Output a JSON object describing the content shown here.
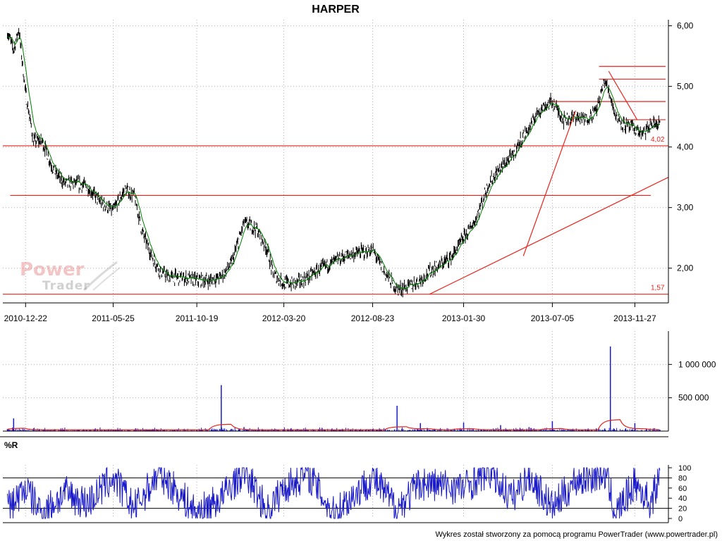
{
  "title": "HARPER",
  "footer": "Wykres został stworzony za pomocą programu PowerTrader (www.powertrader.pl)",
  "logo": {
    "line1": "Power",
    "line2": "Trader"
  },
  "colors": {
    "price": "#000000",
    "average": "#008000",
    "support_lines": "#e8241c",
    "volume_bars": "#1a1ac8",
    "volume_average": "#e8241c",
    "williams_r": "#1a1ac8",
    "grid": "#b0b0b0"
  },
  "chart_data": [
    {
      "type": "line",
      "panel": "price",
      "title": "HARPER",
      "x_tick_labels": [
        "2010-12-22",
        "2011-05-25",
        "2011-10-19",
        "2012-03-20",
        "2012-08-23",
        "2013-01-30",
        "2013-07-05",
        "2013-11-27"
      ],
      "y_tick_labels": [
        "6,00",
        "5,00",
        "4,00",
        "3,00",
        "2,00"
      ],
      "ylim": [
        1.45,
        6.1
      ],
      "grid": true,
      "annotations": [
        "4,02",
        "1,57"
      ],
      "series": [
        {
          "name": "",
          "x": [
            "2010-11-20",
            "2010-12-01",
            "2010-12-10",
            "2010-12-22",
            "2011-01-05",
            "2011-01-20",
            "2011-02-10",
            "2011-03-01",
            "2011-03-20",
            "2011-04-10",
            "2011-05-01",
            "2011-05-25",
            "2011-06-15",
            "2011-07-01",
            "2011-07-15",
            "2011-08-01",
            "2011-08-15",
            "2011-09-01",
            "2011-09-20",
            "2011-10-19",
            "2011-11-10",
            "2011-12-01",
            "2011-12-20",
            "2012-01-10",
            "2012-02-01",
            "2012-02-20",
            "2012-03-01",
            "2012-03-20",
            "2012-04-10",
            "2012-05-01",
            "2012-05-25",
            "2012-06-15",
            "2012-07-05",
            "2012-07-25",
            "2012-08-23",
            "2012-09-15",
            "2012-10-05",
            "2012-10-25",
            "2012-11-15",
            "2012-12-01",
            "2012-12-20",
            "2013-01-10",
            "2013-01-30",
            "2013-02-20",
            "2013-03-15",
            "2013-04-05",
            "2013-04-25",
            "2013-05-10",
            "2013-05-25",
            "2013-06-10",
            "2013-07-05",
            "2013-07-25",
            "2013-08-15",
            "2013-09-01",
            "2013-09-20",
            "2013-10-05",
            "2013-10-15",
            "2013-10-25",
            "2013-11-10",
            "2013-11-27",
            "2013-12-10",
            "2013-12-25",
            "2014-01-10"
          ],
          "values": [
            5.9,
            5.6,
            5.95,
            4.9,
            4.1,
            4.1,
            3.6,
            3.4,
            3.4,
            3.35,
            3.1,
            2.95,
            3.3,
            3.2,
            2.6,
            2.2,
            1.95,
            1.85,
            1.85,
            1.8,
            1.8,
            1.85,
            2.1,
            2.75,
            2.65,
            2.3,
            1.9,
            1.75,
            1.75,
            1.85,
            2.0,
            2.1,
            2.2,
            2.25,
            2.3,
            1.9,
            1.65,
            1.7,
            1.8,
            1.95,
            2.05,
            2.2,
            2.5,
            2.8,
            3.4,
            3.65,
            3.85,
            4.1,
            4.3,
            4.6,
            4.75,
            4.45,
            4.5,
            4.45,
            4.6,
            5.1,
            4.85,
            4.5,
            4.35,
            4.3,
            4.2,
            4.35,
            4.4
          ]
        }
      ]
    },
    {
      "type": "bar",
      "panel": "volume",
      "y_tick_labels": [
        "1 000 000",
        "500 000"
      ],
      "ylim": [
        0,
        1500000
      ],
      "grid": true,
      "series": [
        {
          "name": "",
          "x": [
            "2010-11-20",
            "2010-12-01",
            "2011-01-05",
            "2011-03-01",
            "2011-05-25",
            "2011-08-01",
            "2011-10-19",
            "2011-12-01",
            "2012-01-10",
            "2012-03-20",
            "2012-05-01",
            "2012-06-15",
            "2012-08-23",
            "2012-10-05",
            "2012-11-15",
            "2013-01-30",
            "2013-04-05",
            "2013-05-25",
            "2013-07-05",
            "2013-09-01",
            "2013-10-05",
            "2013-10-15",
            "2013-11-27",
            "2014-01-10"
          ],
          "values": [
            30000,
            190000,
            40000,
            20000,
            25000,
            15000,
            20000,
            690000,
            60000,
            30000,
            20000,
            15000,
            20000,
            380000,
            120000,
            130000,
            90000,
            60000,
            150000,
            30000,
            40000,
            1270000,
            120000,
            20000
          ]
        }
      ]
    },
    {
      "type": "line",
      "panel": "indicator",
      "title": "%R",
      "y_tick_labels": [
        "100",
        "80",
        "60",
        "40",
        "20",
        "0"
      ],
      "ylim": [
        0,
        100
      ],
      "grid": true,
      "series": [
        {
          "name": "",
          "x": [
            "2010-11-20",
            "2010-12-22",
            "2011-01-20",
            "2011-03-01",
            "2011-04-10",
            "2011-05-25",
            "2011-07-01",
            "2011-08-15",
            "2011-10-19",
            "2011-12-01",
            "2012-01-10",
            "2012-02-20",
            "2012-03-20",
            "2012-05-01",
            "2012-06-15",
            "2012-08-23",
            "2012-10-05",
            "2012-11-15",
            "2013-01-30",
            "2013-03-15",
            "2013-04-25",
            "2013-05-25",
            "2013-07-05",
            "2013-08-15",
            "2013-10-05",
            "2013-10-25",
            "2013-11-27",
            "2013-12-25",
            "2014-01-10"
          ],
          "values": [
            20,
            60,
            10,
            50,
            30,
            80,
            20,
            90,
            10,
            40,
            95,
            15,
            60,
            90,
            10,
            80,
            20,
            70,
            60,
            95,
            40,
            85,
            20,
            75,
            90,
            10,
            70,
            30,
            85
          ]
        }
      ]
    }
  ]
}
